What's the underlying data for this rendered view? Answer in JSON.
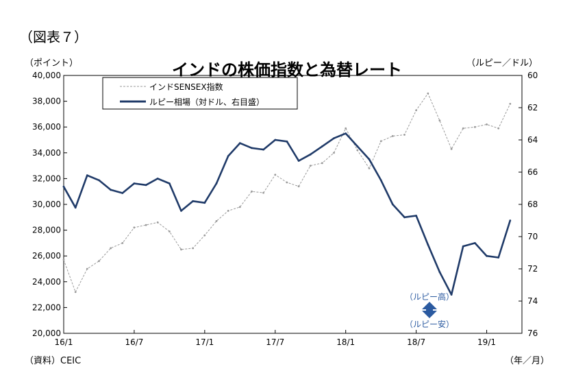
{
  "figure_label": "（図表７）",
  "left_axis_unit": "（ポイント）",
  "right_axis_unit": "（ルピー／ドル）",
  "source": "（資料）CEIC",
  "x_axis_unit": "（年／月）",
  "annotation": {
    "rupee_high": "（ルピー高）",
    "rupee_low": "（ルピー安）"
  },
  "colors": {
    "sensex": "#999999",
    "rupee": "#1f3a68",
    "arrow": "#2b5aa0",
    "axis": "#000000"
  },
  "chart_data": {
    "type": "line",
    "title": "インドの株価指数と為替レート",
    "left_axis": {
      "label": "（ポイント）",
      "ylim": [
        20000,
        40000
      ],
      "ticks": [
        20000,
        22000,
        24000,
        26000,
        28000,
        30000,
        32000,
        34000,
        36000,
        38000,
        40000
      ],
      "tick_labels": [
        "20,000",
        "22,000",
        "24,000",
        "26,000",
        "28,000",
        "30,000",
        "32,000",
        "34,000",
        "36,000",
        "38,000",
        "40,000"
      ]
    },
    "right_axis": {
      "label": "（ルピー／ドル）",
      "ylim": [
        60,
        76
      ],
      "inverted": true,
      "ticks": [
        60,
        62,
        64,
        66,
        68,
        70,
        72,
        74,
        76
      ],
      "tick_labels": [
        "60",
        "62",
        "64",
        "66",
        "68",
        "70",
        "72",
        "74",
        "76"
      ]
    },
    "x_axis": {
      "label": "（年／月）",
      "range": [
        "2016-01",
        "2019-04"
      ],
      "ticks": [
        "2016-01",
        "2016-07",
        "2017-01",
        "2017-07",
        "2018-01",
        "2018-07",
        "2019-01"
      ],
      "tick_labels": [
        "16/1",
        "16/7",
        "17/1",
        "17/7",
        "18/1",
        "18/7",
        "19/1"
      ]
    },
    "legend": {
      "position": "top-left",
      "boxed": true
    },
    "series": [
      {
        "name": "インドSENSEX指数",
        "axis": "left",
        "style": "dashed",
        "x": [
          "2016-01",
          "2016-02",
          "2016-03",
          "2016-04",
          "2016-05",
          "2016-06",
          "2016-07",
          "2016-08",
          "2016-09",
          "2016-10",
          "2016-11",
          "2016-12",
          "2017-01",
          "2017-02",
          "2017-03",
          "2017-04",
          "2017-05",
          "2017-06",
          "2017-07",
          "2017-08",
          "2017-09",
          "2017-10",
          "2017-11",
          "2017-12",
          "2018-01",
          "2018-02",
          "2018-03",
          "2018-04",
          "2018-05",
          "2018-06",
          "2018-07",
          "2018-08",
          "2018-09",
          "2018-10",
          "2018-11",
          "2018-12",
          "2019-01",
          "2019-02",
          "2019-03"
        ],
        "values": [
          25700,
          23200,
          25000,
          25600,
          26600,
          27000,
          28200,
          28400,
          28600,
          27900,
          26500,
          26600,
          27600,
          28700,
          29500,
          29800,
          31000,
          30900,
          32300,
          31700,
          31400,
          33000,
          33200,
          34000,
          35900,
          34200,
          32800,
          34900,
          35300,
          35400,
          37300,
          38600,
          36500,
          34300,
          35900,
          36000,
          36200,
          35900,
          37800
        ]
      },
      {
        "name": "ルピー相場（対ドル、右目盛）",
        "axis": "right",
        "style": "solid",
        "x": [
          "2016-01",
          "2016-02",
          "2016-03",
          "2016-04",
          "2016-05",
          "2016-06",
          "2016-07",
          "2016-08",
          "2016-09",
          "2016-10",
          "2016-11",
          "2016-12",
          "2017-01",
          "2017-02",
          "2017-03",
          "2017-04",
          "2017-05",
          "2017-06",
          "2017-07",
          "2017-08",
          "2017-09",
          "2017-10",
          "2017-11",
          "2017-12",
          "2018-01",
          "2018-02",
          "2018-03",
          "2018-04",
          "2018-05",
          "2018-06",
          "2018-07",
          "2018-08",
          "2018-09",
          "2018-10",
          "2018-11",
          "2018-12",
          "2019-01",
          "2019-02",
          "2019-03"
        ],
        "values": [
          66.9,
          68.2,
          66.2,
          66.5,
          67.1,
          67.3,
          66.7,
          66.8,
          66.4,
          66.7,
          68.4,
          67.8,
          67.9,
          66.7,
          65.0,
          64.2,
          64.5,
          64.6,
          64.0,
          64.1,
          65.3,
          64.9,
          64.4,
          63.9,
          63.6,
          64.4,
          65.2,
          66.5,
          68.0,
          68.8,
          68.7,
          70.5,
          72.2,
          73.6,
          70.6,
          70.4,
          71.2,
          71.3,
          69.0
        ]
      }
    ]
  }
}
